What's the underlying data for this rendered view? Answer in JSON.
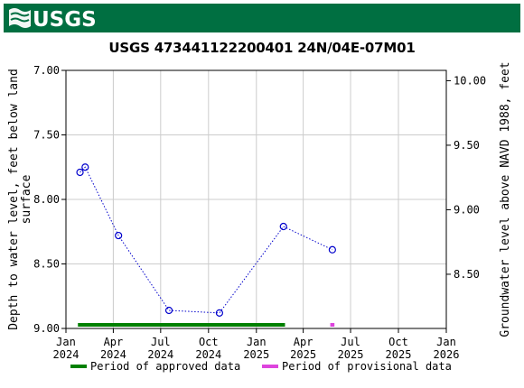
{
  "banner": {
    "logo_text": "USGS",
    "color": "#006f41"
  },
  "chart_data": {
    "type": "scatter",
    "title": "USGS 473441122200401 24N/04E-07M01",
    "ylabel_left": "Depth to water level, feet below land surface",
    "ylabel_right": "Groundwater level above NAVD 1988, feet",
    "y_left": {
      "min": 7.0,
      "max": 9.0,
      "inverted": true,
      "ticks": [
        "7.00",
        "7.50",
        "8.00",
        "8.50",
        "9.00"
      ],
      "tick_values": [
        7.0,
        7.5,
        8.0,
        8.5,
        9.0
      ]
    },
    "y_right": {
      "ticks": [
        "10.00",
        "9.50",
        "9.00",
        "8.50"
      ],
      "tick_values": [
        10.0,
        9.5,
        9.0,
        8.5
      ]
    },
    "x_axis": {
      "ticks": [
        {
          "label": "Jan",
          "year": "2024",
          "date": "2024-01-01"
        },
        {
          "label": "Apr",
          "year": "2024",
          "date": "2024-04-01"
        },
        {
          "label": "Jul",
          "year": "2024",
          "date": "2024-07-01"
        },
        {
          "label": "Oct",
          "year": "2024",
          "date": "2024-10-01"
        },
        {
          "label": "Jan",
          "year": "2025",
          "date": "2025-01-01"
        },
        {
          "label": "Apr",
          "year": "2025",
          "date": "2025-04-01"
        },
        {
          "label": "Jul",
          "year": "2025",
          "date": "2025-07-01"
        },
        {
          "label": "Oct",
          "year": "2025",
          "date": "2025-10-01"
        },
        {
          "label": "Jan",
          "year": "2026",
          "date": "2026-01-01"
        }
      ],
      "range": [
        "2024-01-01",
        "2026-01-01"
      ]
    },
    "series": [
      {
        "points": [
          {
            "date": "2024-01-28",
            "value": 7.79
          },
          {
            "date": "2024-02-07",
            "value": 7.75
          },
          {
            "date": "2024-04-11",
            "value": 8.28
          },
          {
            "date": "2024-07-17",
            "value": 8.86
          },
          {
            "date": "2024-10-22",
            "value": 8.88
          },
          {
            "date": "2025-02-22",
            "value": 8.21
          },
          {
            "date": "2025-05-27",
            "value": 8.39
          }
        ],
        "color": "#0000cc",
        "marker": "open-circle",
        "line": "dotted"
      }
    ],
    "periods": [
      {
        "name": "Period of approved data",
        "start": "2024-01-24",
        "end": "2025-02-25",
        "color": "#008000"
      },
      {
        "name": "Period of provisional data",
        "start": "2025-05-23",
        "end": "2025-05-31",
        "color": "#dd44dd"
      }
    ],
    "grid": true,
    "legend_placement": "bottom"
  }
}
